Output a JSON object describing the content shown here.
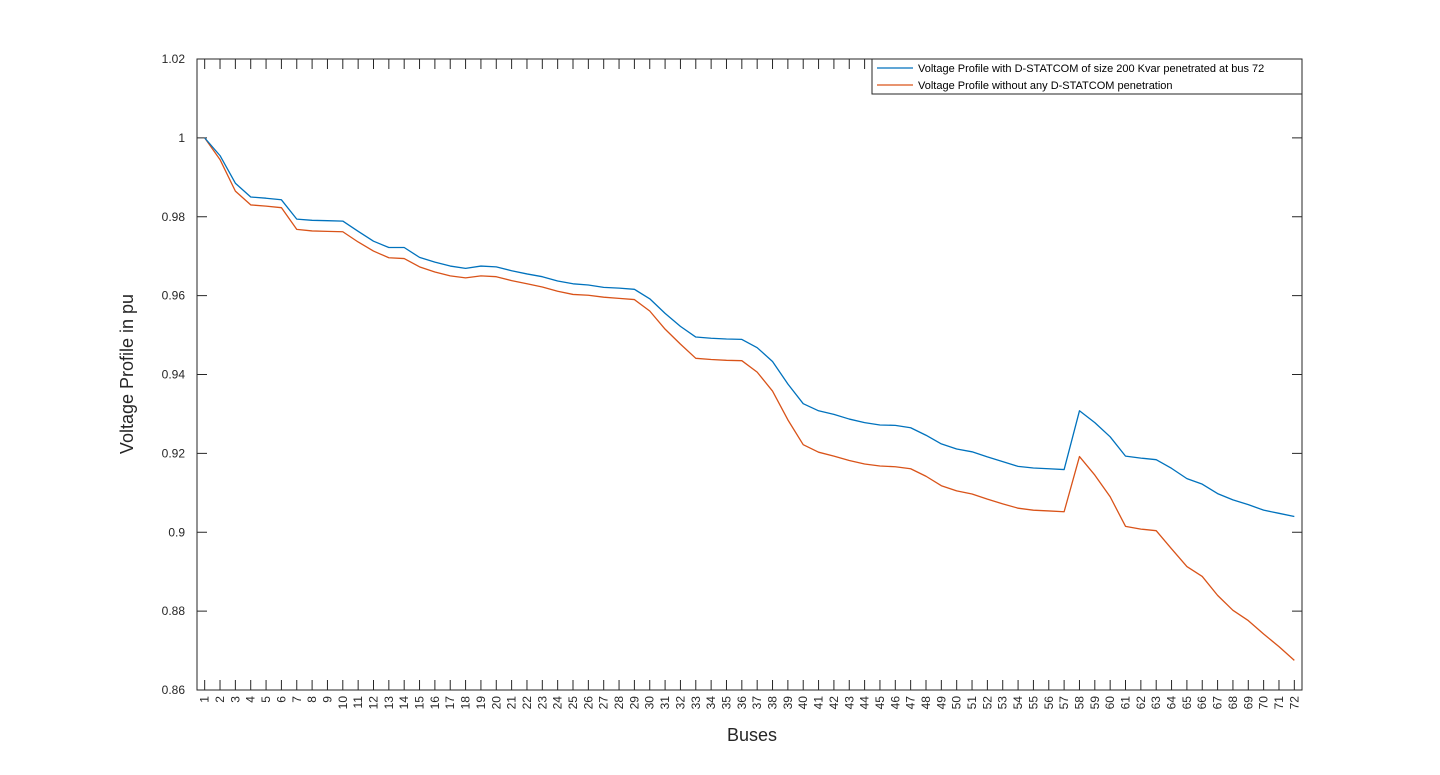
{
  "chart_data": {
    "type": "line",
    "title": "",
    "xlabel": "Buses",
    "ylabel": "Voltage Profile in pu",
    "xlim": [
      0.5,
      72.5
    ],
    "ylim": [
      0.86,
      1.02
    ],
    "yticks": [
      0.86,
      0.88,
      0.9,
      0.92,
      0.94,
      0.96,
      0.98,
      1,
      1.02
    ],
    "ytick_labels": [
      "0.86",
      "0.88",
      "0.9",
      "0.92",
      "0.94",
      "0.96",
      "0.98",
      "1",
      "1.02"
    ],
    "x": [
      1,
      2,
      3,
      4,
      5,
      6,
      7,
      8,
      9,
      10,
      11,
      12,
      13,
      14,
      15,
      16,
      17,
      18,
      19,
      20,
      21,
      22,
      23,
      24,
      25,
      26,
      27,
      28,
      29,
      30,
      31,
      32,
      33,
      34,
      35,
      36,
      37,
      38,
      39,
      40,
      41,
      42,
      43,
      44,
      45,
      46,
      47,
      48,
      49,
      50,
      51,
      52,
      53,
      54,
      55,
      56,
      57,
      58,
      59,
      60,
      61,
      62,
      63,
      64,
      65,
      66,
      67,
      68,
      69,
      70,
      71,
      72
    ],
    "xtick_labels": [
      "1",
      "2",
      "3",
      "4",
      "5",
      "6",
      "7",
      "8",
      "9",
      "10",
      "11",
      "12",
      "13",
      "14",
      "15",
      "16",
      "17",
      "18",
      "19",
      "20",
      "21",
      "22",
      "23",
      "24",
      "25",
      "26",
      "27",
      "28",
      "29",
      "30",
      "31",
      "32",
      "33",
      "34",
      "35",
      "36",
      "37",
      "38",
      "39",
      "40",
      "41",
      "42",
      "43",
      "44",
      "45",
      "46",
      "47",
      "48",
      "49",
      "50",
      "51",
      "52",
      "53",
      "54",
      "55",
      "56",
      "57",
      "58",
      "59",
      "60",
      "61",
      "62",
      "63",
      "64",
      "65",
      "66",
      "67",
      "68",
      "69",
      "70",
      "71",
      "72"
    ],
    "grid": false,
    "legend_position": "top-right",
    "series": [
      {
        "name": "Voltage Profile with D-STATCOM of size 200 Kvar penetrated at bus 72",
        "color": "#0072BD",
        "values": [
          1.0,
          0.9955,
          0.9885,
          0.985,
          0.9847,
          0.9843,
          0.9794,
          0.9791,
          0.979,
          0.9789,
          0.9763,
          0.9738,
          0.9722,
          0.9722,
          0.9697,
          0.9685,
          0.9675,
          0.9669,
          0.9675,
          0.9673,
          0.9663,
          0.9655,
          0.9648,
          0.9637,
          0.963,
          0.9627,
          0.9621,
          0.9619,
          0.9616,
          0.9592,
          0.9555,
          0.9522,
          0.9495,
          0.9492,
          0.949,
          0.9489,
          0.9468,
          0.9433,
          0.9376,
          0.9326,
          0.9308,
          0.9299,
          0.9287,
          0.9278,
          0.9272,
          0.9271,
          0.9265,
          0.9246,
          0.9224,
          0.9211,
          0.9204,
          0.9191,
          0.9179,
          0.9167,
          0.9163,
          0.9161,
          0.9159,
          0.9308,
          0.9278,
          0.9242,
          0.9193,
          0.9188,
          0.9184,
          0.9162,
          0.9136,
          0.9122,
          0.9098,
          0.9082,
          0.907,
          0.9056,
          0.9048,
          0.904
        ]
      },
      {
        "name": "Voltage Profile without any D-STATCOM penetration",
        "color": "#D95319",
        "values": [
          1.0,
          0.9945,
          0.9865,
          0.983,
          0.9827,
          0.9823,
          0.9768,
          0.9764,
          0.9763,
          0.9762,
          0.9736,
          0.9713,
          0.9696,
          0.9694,
          0.9673,
          0.966,
          0.965,
          0.9645,
          0.965,
          0.9648,
          0.9638,
          0.963,
          0.9622,
          0.9611,
          0.9603,
          0.9601,
          0.9596,
          0.9593,
          0.959,
          0.9561,
          0.9515,
          0.9477,
          0.9441,
          0.9438,
          0.9436,
          0.9435,
          0.9406,
          0.9358,
          0.9285,
          0.9222,
          0.9203,
          0.9193,
          0.9182,
          0.9173,
          0.9168,
          0.9166,
          0.9161,
          0.9142,
          0.9118,
          0.9105,
          0.9097,
          0.9084,
          0.9072,
          0.9061,
          0.9056,
          0.9054,
          0.9052,
          0.9192,
          0.9145,
          0.909,
          0.9015,
          0.9008,
          0.9004,
          0.8958,
          0.8913,
          0.8888,
          0.884,
          0.8802,
          0.8776,
          0.8742,
          0.871,
          0.8675
        ]
      }
    ]
  }
}
